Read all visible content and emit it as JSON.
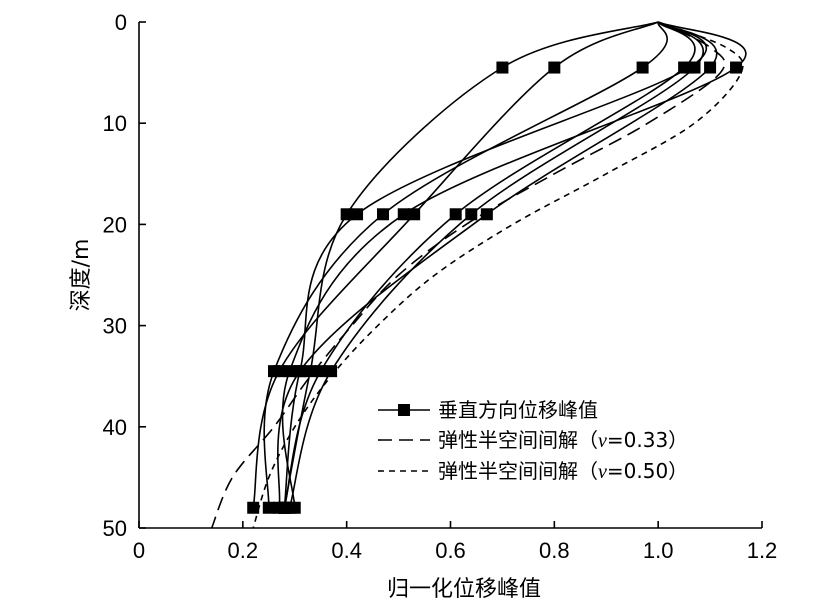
{
  "chart_data": {
    "type": "line",
    "xlabel": "归一化位移峰值",
    "ylabel": "深度/m",
    "xlim": [
      0,
      1.2
    ],
    "ylim": [
      0,
      50
    ],
    "y_inverted": true,
    "x_ticks": [
      "0",
      "0.2",
      "0.4",
      "0.6",
      "0.8",
      "1.0",
      "1.2"
    ],
    "x_tick_values": [
      0,
      0.2,
      0.4,
      0.6,
      0.8,
      1.0,
      1.2
    ],
    "y_ticks": [
      "0",
      "10",
      "20",
      "30",
      "40",
      "50"
    ],
    "y_tick_values": [
      0,
      10,
      20,
      30,
      40,
      50
    ],
    "grid": false,
    "legend_position": "bottom-right",
    "legend": [
      {
        "label": "垂直方向位移峰值",
        "style": "solid-square"
      },
      {
        "label": "弹性半空间间解（",
        "italic": "v",
        "suffix": "=0.33）",
        "style": "long-dash"
      },
      {
        "label": "弹性半空间间解（",
        "italic": "v",
        "suffix": "=0.50）",
        "style": "short-dash"
      }
    ],
    "series": [
      {
        "kind": "vertical",
        "points": [
          [
            1.0,
            0
          ],
          [
            0.7,
            4.5
          ],
          [
            0.4,
            19
          ],
          [
            0.33,
            34.5
          ],
          [
            0.28,
            48
          ]
        ]
      },
      {
        "kind": "vertical",
        "points": [
          [
            1.0,
            0
          ],
          [
            0.8,
            4.5
          ],
          [
            0.53,
            19
          ],
          [
            0.27,
            34.5
          ],
          [
            0.22,
            48
          ]
        ]
      },
      {
        "kind": "vertical",
        "points": [
          [
            1.0,
            0
          ],
          [
            0.97,
            4.5
          ],
          [
            0.47,
            19
          ],
          [
            0.26,
            34.5
          ],
          [
            0.25,
            48
          ]
        ]
      },
      {
        "kind": "vertical",
        "points": [
          [
            1.0,
            0
          ],
          [
            1.05,
            4.5
          ],
          [
            0.61,
            19
          ],
          [
            0.35,
            34.5
          ],
          [
            0.28,
            48
          ]
        ]
      },
      {
        "kind": "vertical",
        "points": [
          [
            1.0,
            0
          ],
          [
            1.07,
            4.5
          ],
          [
            0.64,
            19
          ],
          [
            0.37,
            34.5
          ],
          [
            0.29,
            48
          ]
        ]
      },
      {
        "kind": "vertical",
        "points": [
          [
            1.0,
            0
          ],
          [
            1.1,
            4.5
          ],
          [
            0.67,
            19
          ],
          [
            0.31,
            34.5
          ],
          [
            0.27,
            48
          ]
        ]
      },
      {
        "kind": "vertical",
        "points": [
          [
            1.0,
            0
          ],
          [
            1.15,
            4.5
          ],
          [
            0.51,
            19
          ],
          [
            0.29,
            34.5
          ],
          [
            0.3,
            48
          ]
        ]
      },
      {
        "kind": "vertical",
        "points": [
          [
            1.0,
            0
          ],
          [
            1.06,
            4.5
          ],
          [
            0.42,
            19
          ],
          [
            0.31,
            34.5
          ],
          [
            0.28,
            48
          ]
        ]
      },
      {
        "kind": "elastic-0.33",
        "points": [
          [
            1.0,
            0
          ],
          [
            1.1,
            2.5
          ],
          [
            1.12,
            5
          ],
          [
            0.98,
            10
          ],
          [
            0.8,
            15
          ],
          [
            0.63,
            20
          ],
          [
            0.5,
            25
          ],
          [
            0.41,
            30
          ],
          [
            0.33,
            35
          ],
          [
            0.26,
            40
          ],
          [
            0.18,
            45
          ],
          [
            0.14,
            50
          ]
        ]
      },
      {
        "kind": "elastic-0.50",
        "points": [
          [
            1.0,
            0
          ],
          [
            1.13,
            2.5
          ],
          [
            1.16,
            5
          ],
          [
            1.07,
            10
          ],
          [
            0.9,
            15
          ],
          [
            0.72,
            20
          ],
          [
            0.57,
            25
          ],
          [
            0.46,
            30
          ],
          [
            0.37,
            35
          ],
          [
            0.3,
            40
          ],
          [
            0.25,
            45
          ],
          [
            0.22,
            50
          ]
        ]
      }
    ]
  }
}
